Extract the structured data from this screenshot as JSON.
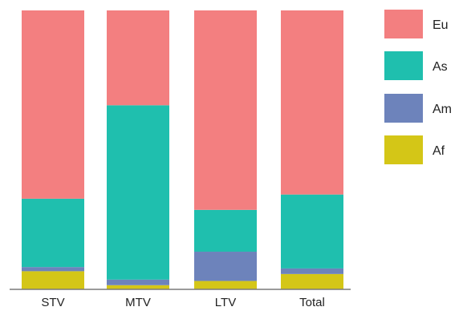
{
  "chart_data": {
    "type": "bar",
    "stacked": true,
    "normalized": true,
    "categories": [
      "STV",
      "MTV",
      "LTV",
      "Total"
    ],
    "series": [
      {
        "name": "Af",
        "color": "#d4c617",
        "values": [
          6.5,
          1.5,
          3.0,
          5.5
        ]
      },
      {
        "name": "Am",
        "color": "#6d83bb",
        "values": [
          1.5,
          2.0,
          10.5,
          2.0
        ]
      },
      {
        "name": "As",
        "color": "#1fbfae",
        "values": [
          24.5,
          62.5,
          15.0,
          26.5
        ]
      },
      {
        "name": "Eu",
        "color": "#f37f80",
        "values": [
          67.5,
          34.0,
          71.5,
          66.0
        ]
      }
    ],
    "ylim": [
      0,
      100
    ],
    "grid": false,
    "legend_position": "right",
    "legend_order": [
      "Eu",
      "As",
      "Am",
      "Af"
    ],
    "title": "",
    "xlabel": "",
    "ylabel": ""
  }
}
